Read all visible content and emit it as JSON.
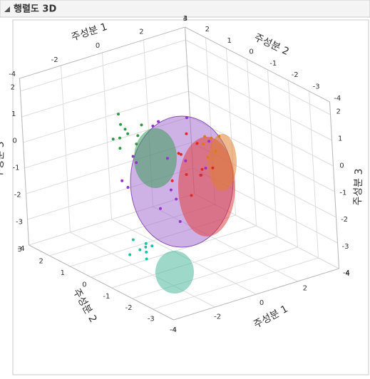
{
  "chart_data": {
    "type": "scatter3d",
    "title": "행렬도 3D",
    "x_label": "주성분 1",
    "y_label": "주성분 2",
    "z_label": "주성분 3",
    "xlim": [
      -4,
      4
    ],
    "xticks": [
      -4,
      -2,
      0,
      2,
      4
    ],
    "ylim": [
      -4,
      3
    ],
    "yticks": [
      -4,
      -3,
      -2,
      -1,
      0,
      1,
      2,
      3
    ],
    "zlim": [
      -4,
      2.5
    ],
    "zticks": [
      -4,
      -3,
      -2,
      -1,
      0,
      1,
      2
    ],
    "grid": true,
    "series": [
      {
        "color": "#9b30d0",
        "x": [
          -1.2,
          -0.5,
          0.3,
          1.0,
          -0.8,
          0.6,
          -1.5,
          0.0,
          1.4,
          -0.3,
          0.9,
          -1.0,
          0.2,
          1.8,
          -2.0,
          0.5
        ],
        "y": [
          0.5,
          -0.8,
          1.0,
          0.2,
          -0.3,
          -1.2,
          0.8,
          0.4,
          -0.6,
          1.3,
          0.9,
          -1.0,
          -0.2,
          0.3,
          0.0,
          -0.5
        ],
        "z": [
          -0.2,
          -1.5,
          0.4,
          -0.8,
          -2.0,
          -0.4,
          -1.2,
          0.9,
          0.2,
          -1.0,
          -2.2,
          0.3,
          -2.8,
          -1.6,
          -1.0,
          1.3
        ]
      },
      {
        "color": "#e02828",
        "x": [
          0.8,
          1.2,
          1.5,
          0.6,
          1.0,
          1.3,
          0.9,
          1.7,
          0.5,
          1.1
        ],
        "y": [
          0.2,
          -0.3,
          0.1,
          0.5,
          -0.6,
          0.4,
          -0.1,
          -0.4,
          0.0,
          0.3
        ],
        "z": [
          -0.5,
          -1.2,
          -0.2,
          -1.6,
          -0.8,
          0.1,
          -2.0,
          -1.0,
          -0.3,
          -1.4
        ]
      },
      {
        "color": "#e07a10",
        "x": [
          1.4,
          1.6,
          1.8,
          1.3,
          1.7,
          1.5
        ],
        "y": [
          -0.4,
          -0.7,
          -0.3,
          -0.6,
          -0.8,
          -0.2
        ],
        "z": [
          0.3,
          -0.2,
          0.1,
          -0.4,
          0.4,
          -0.1
        ]
      },
      {
        "color": "#2e9a48",
        "x": [
          -1.6,
          -1.2,
          -1.9,
          -1.4,
          -1.0,
          -1.7,
          -1.3,
          -2.1,
          -1.5,
          -1.1
        ],
        "y": [
          0.4,
          0.7,
          0.3,
          0.9,
          0.2,
          0.6,
          0.1,
          0.5,
          0.8,
          0.4
        ],
        "z": [
          1.0,
          0.6,
          1.3,
          0.4,
          1.1,
          0.2,
          0.8,
          0.7,
          1.4,
          0.3
        ]
      },
      {
        "color": "#1fc0a0",
        "x": [
          -1.5,
          -1.2,
          -1.8,
          -1.4,
          -1.1,
          -1.6,
          -1.3,
          -1.7
        ],
        "y": [
          0.1,
          -0.2,
          0.3,
          -0.1,
          0.2,
          -0.3,
          0.0,
          0.2
        ],
        "z": [
          -3.6,
          -3.4,
          -3.8,
          -3.9,
          -3.5,
          -3.3,
          -3.7,
          -3.2
        ]
      }
    ]
  }
}
